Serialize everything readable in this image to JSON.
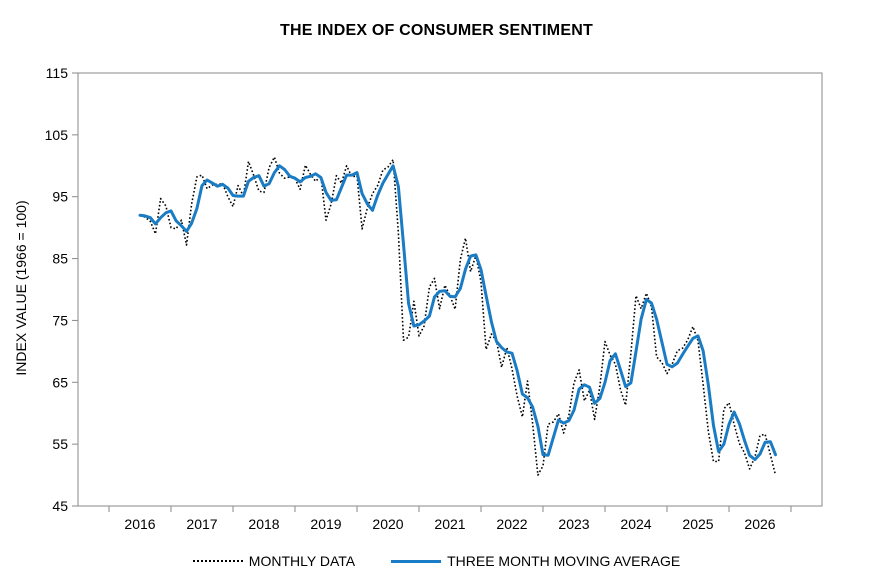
{
  "chart_data": {
    "type": "line",
    "title": "THE INDEX OF CONSUMER SENTIMENT",
    "ylabel": "INDEX VALUE (1966 = 100)",
    "xlabel": "",
    "xlim": [
      2015.0,
      2027.0
    ],
    "ylim": [
      45,
      115
    ],
    "yticks": [
      45,
      55,
      65,
      75,
      85,
      95,
      105,
      115
    ],
    "xticks": [
      2016,
      2017,
      2018,
      2019,
      2020,
      2021,
      2022,
      2023,
      2024,
      2025,
      2026
    ],
    "grid": false,
    "legend_position": "bottom",
    "series": [
      {
        "name": "MONTHLY DATA",
        "style": "dotted",
        "color": "#000000",
        "points": [
          [
            2016.0,
            92.0
          ],
          [
            2016.083,
            91.7
          ],
          [
            2016.167,
            91.0
          ],
          [
            2016.25,
            89.0
          ],
          [
            2016.333,
            94.7
          ],
          [
            2016.417,
            93.5
          ],
          [
            2016.5,
            90.0
          ],
          [
            2016.583,
            89.8
          ],
          [
            2016.667,
            91.2
          ],
          [
            2016.75,
            87.2
          ],
          [
            2016.833,
            93.8
          ],
          [
            2016.917,
            98.2
          ],
          [
            2017.0,
            98.5
          ],
          [
            2017.083,
            96.3
          ],
          [
            2017.167,
            96.9
          ],
          [
            2017.25,
            97.0
          ],
          [
            2017.333,
            97.1
          ],
          [
            2017.417,
            95.0
          ],
          [
            2017.5,
            93.4
          ],
          [
            2017.583,
            96.8
          ],
          [
            2017.667,
            95.1
          ],
          [
            2017.75,
            100.7
          ],
          [
            2017.833,
            98.5
          ],
          [
            2017.917,
            95.9
          ],
          [
            2018.0,
            95.7
          ],
          [
            2018.083,
            99.7
          ],
          [
            2018.167,
            101.4
          ],
          [
            2018.25,
            98.8
          ],
          [
            2018.333,
            98.0
          ],
          [
            2018.417,
            98.2
          ],
          [
            2018.5,
            97.9
          ],
          [
            2018.583,
            96.2
          ],
          [
            2018.667,
            100.1
          ],
          [
            2018.75,
            98.6
          ],
          [
            2018.833,
            97.5
          ],
          [
            2018.917,
            98.3
          ],
          [
            2019.0,
            91.2
          ],
          [
            2019.083,
            93.8
          ],
          [
            2019.167,
            98.4
          ],
          [
            2019.25,
            97.2
          ],
          [
            2019.333,
            100.0
          ],
          [
            2019.417,
            98.2
          ],
          [
            2019.5,
            98.4
          ],
          [
            2019.583,
            89.8
          ],
          [
            2019.667,
            93.2
          ],
          [
            2019.75,
            95.5
          ],
          [
            2019.833,
            96.8
          ],
          [
            2019.917,
            99.3
          ],
          [
            2020.0,
            99.8
          ],
          [
            2020.083,
            101.0
          ],
          [
            2020.167,
            89.1
          ],
          [
            2020.25,
            71.8
          ],
          [
            2020.333,
            72.3
          ],
          [
            2020.417,
            78.1
          ],
          [
            2020.5,
            72.5
          ],
          [
            2020.583,
            74.1
          ],
          [
            2020.667,
            80.4
          ],
          [
            2020.75,
            81.8
          ],
          [
            2020.833,
            76.9
          ],
          [
            2020.917,
            80.7
          ],
          [
            2021.0,
            79.0
          ],
          [
            2021.083,
            76.8
          ],
          [
            2021.167,
            84.9
          ],
          [
            2021.25,
            88.3
          ],
          [
            2021.333,
            82.9
          ],
          [
            2021.417,
            85.5
          ],
          [
            2021.5,
            81.2
          ],
          [
            2021.583,
            70.3
          ],
          [
            2021.667,
            72.8
          ],
          [
            2021.75,
            71.7
          ],
          [
            2021.833,
            67.4
          ],
          [
            2021.917,
            70.6
          ],
          [
            2022.0,
            67.2
          ],
          [
            2022.083,
            62.8
          ],
          [
            2022.167,
            59.4
          ],
          [
            2022.25,
            65.2
          ],
          [
            2022.333,
            58.4
          ],
          [
            2022.417,
            50.0
          ],
          [
            2022.5,
            51.5
          ],
          [
            2022.583,
            58.2
          ],
          [
            2022.667,
            58.6
          ],
          [
            2022.75,
            59.9
          ],
          [
            2022.833,
            56.8
          ],
          [
            2022.917,
            59.7
          ],
          [
            2023.0,
            64.9
          ],
          [
            2023.083,
            67.0
          ],
          [
            2023.167,
            62.0
          ],
          [
            2023.25,
            63.7
          ],
          [
            2023.333,
            59.0
          ],
          [
            2023.417,
            64.4
          ],
          [
            2023.5,
            71.6
          ],
          [
            2023.583,
            69.4
          ],
          [
            2023.667,
            67.9
          ],
          [
            2023.75,
            63.8
          ],
          [
            2023.833,
            61.3
          ],
          [
            2023.917,
            69.7
          ],
          [
            2024.0,
            79.0
          ],
          [
            2024.083,
            76.9
          ],
          [
            2024.167,
            79.4
          ],
          [
            2024.25,
            77.2
          ],
          [
            2024.333,
            69.1
          ],
          [
            2024.417,
            68.2
          ],
          [
            2024.5,
            66.4
          ],
          [
            2024.583,
            67.9
          ],
          [
            2024.667,
            70.1
          ],
          [
            2024.75,
            70.5
          ],
          [
            2024.833,
            71.8
          ],
          [
            2024.917,
            74.0
          ],
          [
            2025.0,
            71.7
          ],
          [
            2025.083,
            64.7
          ],
          [
            2025.167,
            57.0
          ],
          [
            2025.25,
            52.2
          ],
          [
            2025.333,
            52.2
          ],
          [
            2025.417,
            60.7
          ],
          [
            2025.5,
            61.7
          ],
          [
            2025.583,
            58.2
          ],
          [
            2025.667,
            55.1
          ],
          [
            2025.75,
            53.6
          ],
          [
            2025.833,
            51.0
          ],
          [
            2025.917,
            52.9
          ],
          [
            2026.0,
            56.4
          ],
          [
            2026.083,
            56.6
          ],
          [
            2026.167,
            53.3
          ],
          [
            2026.25,
            50.0
          ]
        ]
      },
      {
        "name": "THREE MONTH MOVING AVERAGE",
        "style": "solid",
        "color": "#1a7cc4",
        "points": [
          [
            2016.0,
            92.0
          ],
          [
            2016.083,
            91.9
          ],
          [
            2016.167,
            91.6
          ],
          [
            2016.25,
            90.6
          ],
          [
            2016.333,
            91.6
          ],
          [
            2016.417,
            92.4
          ],
          [
            2016.5,
            92.7
          ],
          [
            2016.583,
            91.1
          ],
          [
            2016.667,
            90.3
          ],
          [
            2016.75,
            89.4
          ],
          [
            2016.833,
            90.7
          ],
          [
            2016.917,
            93.1
          ],
          [
            2017.0,
            96.8
          ],
          [
            2017.083,
            97.7
          ],
          [
            2017.167,
            97.2
          ],
          [
            2017.25,
            96.7
          ],
          [
            2017.333,
            97.0
          ],
          [
            2017.417,
            96.4
          ],
          [
            2017.5,
            95.2
          ],
          [
            2017.583,
            95.1
          ],
          [
            2017.667,
            95.1
          ],
          [
            2017.75,
            97.5
          ],
          [
            2017.833,
            98.1
          ],
          [
            2017.917,
            98.4
          ],
          [
            2018.0,
            96.7
          ],
          [
            2018.083,
            97.1
          ],
          [
            2018.167,
            98.9
          ],
          [
            2018.25,
            100.0
          ],
          [
            2018.333,
            99.4
          ],
          [
            2018.417,
            98.3
          ],
          [
            2018.5,
            98.0
          ],
          [
            2018.583,
            97.4
          ],
          [
            2018.667,
            98.1
          ],
          [
            2018.75,
            98.3
          ],
          [
            2018.833,
            98.7
          ],
          [
            2018.917,
            98.1
          ],
          [
            2019.0,
            95.7
          ],
          [
            2019.083,
            94.4
          ],
          [
            2019.167,
            94.5
          ],
          [
            2019.25,
            96.5
          ],
          [
            2019.333,
            98.5
          ],
          [
            2019.417,
            98.5
          ],
          [
            2019.5,
            98.9
          ],
          [
            2019.583,
            95.5
          ],
          [
            2019.667,
            93.8
          ],
          [
            2019.75,
            92.8
          ],
          [
            2019.833,
            95.2
          ],
          [
            2019.917,
            97.2
          ],
          [
            2020.0,
            98.6
          ],
          [
            2020.083,
            100.0
          ],
          [
            2020.167,
            96.6
          ],
          [
            2020.25,
            87.3
          ],
          [
            2020.333,
            77.7
          ],
          [
            2020.417,
            74.1
          ],
          [
            2020.5,
            74.3
          ],
          [
            2020.583,
            74.9
          ],
          [
            2020.667,
            75.7
          ],
          [
            2020.75,
            78.8
          ],
          [
            2020.833,
            79.7
          ],
          [
            2020.917,
            79.8
          ],
          [
            2021.0,
            78.9
          ],
          [
            2021.083,
            78.8
          ],
          [
            2021.167,
            80.2
          ],
          [
            2021.25,
            83.3
          ],
          [
            2021.333,
            85.4
          ],
          [
            2021.417,
            85.6
          ],
          [
            2021.5,
            83.2
          ],
          [
            2021.583,
            79.0
          ],
          [
            2021.667,
            74.8
          ],
          [
            2021.75,
            71.6
          ],
          [
            2021.833,
            70.6
          ],
          [
            2021.917,
            69.9
          ],
          [
            2022.0,
            69.7
          ],
          [
            2022.083,
            66.9
          ],
          [
            2022.167,
            63.1
          ],
          [
            2022.25,
            62.5
          ],
          [
            2022.333,
            61.0
          ],
          [
            2022.417,
            57.9
          ],
          [
            2022.5,
            53.3
          ],
          [
            2022.583,
            53.2
          ],
          [
            2022.667,
            56.1
          ],
          [
            2022.75,
            58.9
          ],
          [
            2022.833,
            58.4
          ],
          [
            2022.917,
            58.8
          ],
          [
            2023.0,
            60.5
          ],
          [
            2023.083,
            63.9
          ],
          [
            2023.167,
            64.6
          ],
          [
            2023.25,
            64.2
          ],
          [
            2023.333,
            61.6
          ],
          [
            2023.417,
            62.4
          ],
          [
            2023.5,
            65.0
          ],
          [
            2023.583,
            68.5
          ],
          [
            2023.667,
            69.6
          ],
          [
            2023.75,
            67.0
          ],
          [
            2023.833,
            64.3
          ],
          [
            2023.917,
            64.9
          ],
          [
            2024.0,
            70.0
          ],
          [
            2024.083,
            75.2
          ],
          [
            2024.167,
            78.4
          ],
          [
            2024.25,
            77.8
          ],
          [
            2024.333,
            75.2
          ],
          [
            2024.417,
            71.5
          ],
          [
            2024.5,
            67.9
          ],
          [
            2024.583,
            67.5
          ],
          [
            2024.667,
            68.1
          ],
          [
            2024.75,
            69.5
          ],
          [
            2024.833,
            70.8
          ],
          [
            2024.917,
            72.1
          ],
          [
            2025.0,
            72.5
          ],
          [
            2025.083,
            70.1
          ],
          [
            2025.167,
            64.5
          ],
          [
            2025.25,
            58.0
          ],
          [
            2025.333,
            53.8
          ],
          [
            2025.417,
            55.0
          ],
          [
            2025.5,
            58.2
          ],
          [
            2025.583,
            60.2
          ],
          [
            2025.667,
            58.3
          ],
          [
            2025.75,
            55.6
          ],
          [
            2025.833,
            53.2
          ],
          [
            2025.917,
            52.5
          ],
          [
            2026.0,
            53.4
          ],
          [
            2026.083,
            55.3
          ],
          [
            2026.167,
            55.4
          ],
          [
            2026.25,
            53.3
          ]
        ]
      }
    ]
  }
}
